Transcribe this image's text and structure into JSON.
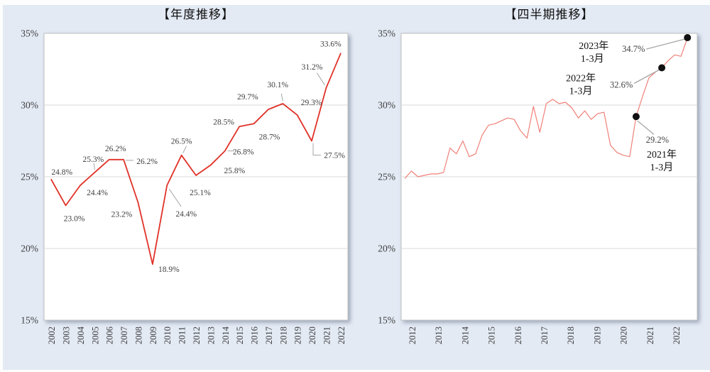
{
  "page": {
    "background_color": "#e3eaf4",
    "plot_background_color": "#ffffff",
    "grid_color": "#d9d9d9",
    "plot_border_color": "#bfbfbf",
    "tick_text_color": "#3d3d3d",
    "data_label_color": "#404040",
    "leader_line_color": "#a6a6a6",
    "marker_color": "#111111"
  },
  "chart_data": [
    {
      "type": "line",
      "title": "【年度推移】",
      "xlabel": "",
      "ylabel": "",
      "ylim": [
        15,
        35
      ],
      "grid": true,
      "line_color": "#e03127",
      "yticks": [
        "35%",
        "30%",
        "25%",
        "20%",
        "15%"
      ],
      "categories": [
        "2002",
        "2003",
        "2004",
        "2005",
        "2006",
        "2007",
        "2008",
        "2009",
        "2010",
        "2011",
        "2012",
        "2013",
        "2014",
        "2015",
        "2016",
        "2017",
        "2018",
        "2019",
        "2020",
        "2021",
        "2022"
      ],
      "values": [
        24.8,
        23.0,
        24.4,
        25.3,
        26.2,
        26.2,
        23.2,
        18.9,
        24.4,
        26.5,
        25.1,
        25.8,
        26.8,
        28.5,
        28.7,
        29.7,
        30.1,
        29.3,
        27.5,
        31.2,
        33.6
      ],
      "data_labels": [
        "24.8%",
        "23.0%",
        "24.4%",
        "25.3%",
        "26.2%",
        "26.2%",
        "23.2%",
        "18.9%",
        "24.4%",
        "26.5%",
        "25.1%",
        "25.8%",
        "26.8%",
        "28.5%",
        "28.7%",
        "29.7%",
        "30.1%",
        "29.3%",
        "27.5%",
        "31.2%",
        "33.6%"
      ]
    },
    {
      "type": "line",
      "title": "【四半期推移】",
      "xlabel": "",
      "ylabel": "",
      "ylim": [
        15,
        35
      ],
      "grid": true,
      "line_color": "#f08078",
      "yticks": [
        "35%",
        "30%",
        "25%",
        "20%",
        "15%"
      ],
      "x_year_labels": [
        "2012",
        "2013",
        "2014",
        "2015",
        "2016",
        "2017",
        "2018",
        "2019",
        "2020",
        "2021",
        "2022"
      ],
      "x_start": "2012-Q1",
      "x_end": "2023-Q1",
      "values": [
        24.9,
        25.4,
        25.0,
        25.1,
        25.2,
        25.2,
        25.3,
        27.0,
        26.6,
        27.5,
        26.4,
        26.6,
        27.9,
        28.6,
        28.7,
        28.9,
        29.1,
        29.0,
        28.2,
        27.7,
        29.9,
        28.1,
        30.1,
        30.4,
        30.1,
        30.2,
        29.8,
        29.1,
        29.6,
        29.0,
        29.4,
        29.5,
        27.2,
        26.7,
        26.5,
        26.4,
        29.2,
        30.6,
        31.9,
        32.3,
        32.6,
        33.1,
        33.5,
        33.4,
        34.7
      ],
      "annotations": [
        {
          "year_label": "2021年",
          "period_label": "1-3月",
          "value_label": "29.2%",
          "point_index": 36
        },
        {
          "year_label": "2022年",
          "period_label": "1-3月",
          "value_label": "32.6%",
          "point_index": 40
        },
        {
          "year_label": "2023年",
          "period_label": "1-3月",
          "value_label": "34.7%",
          "point_index": 44
        }
      ]
    }
  ]
}
